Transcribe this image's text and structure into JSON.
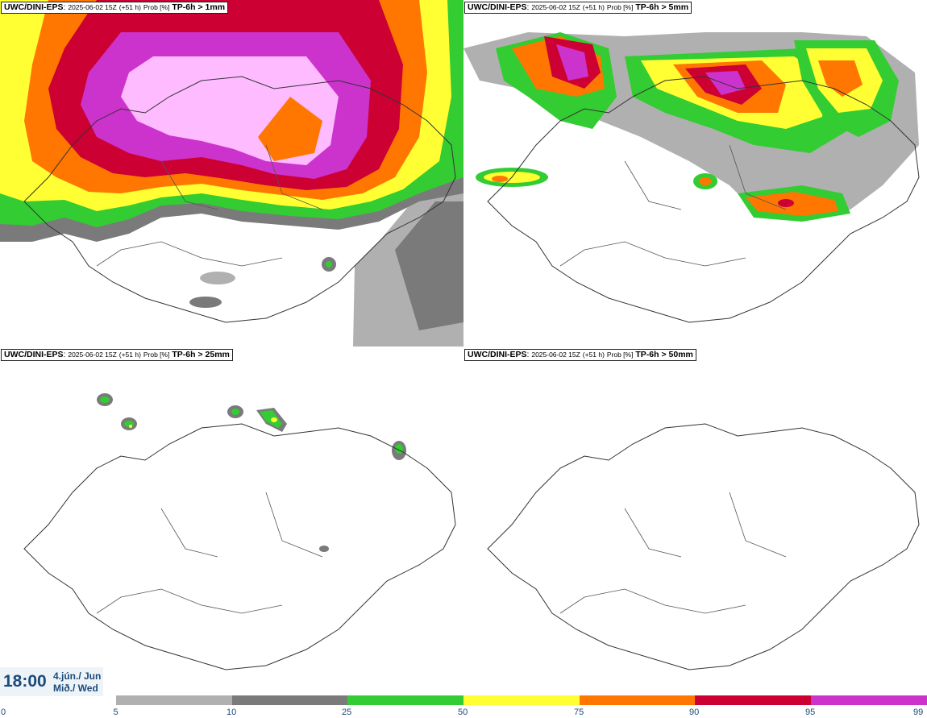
{
  "panels": [
    {
      "model": "UWC/DINI-EPS",
      "run": "2025-06-02 15Z",
      "lead": "(+51 h)",
      "prob": "Prob [%]",
      "threshold": "TP-6h > 1mm"
    },
    {
      "model": "UWC/DINI-EPS",
      "run": "2025-06-02 15Z",
      "lead": "(+51 h)",
      "prob": "Prob [%]",
      "threshold": "TP-6h > 5mm"
    },
    {
      "model": "UWC/DINI-EPS",
      "run": "2025-06-02 15Z",
      "lead": "(+51 h)",
      "prob": "Prob [%]",
      "threshold": "TP-6h > 25mm"
    },
    {
      "model": "UWC/DINI-EPS",
      "run": "2025-06-02 15Z",
      "lead": "(+51 h)",
      "prob": "Prob [%]",
      "threshold": "TP-6h > 50mm"
    }
  ],
  "valid_time": {
    "time": "18:00",
    "date_line1": "4.jún./ Jun",
    "date_line2": "Mið./ Wed"
  },
  "colorbar": {
    "ticks": [
      "0",
      "5",
      "10",
      "25",
      "50",
      "75",
      "90",
      "95",
      "99"
    ],
    "colors": [
      "#b0b0b0",
      "#7a7a7a",
      "#33cc33",
      "#ffff33",
      "#ff7700",
      "#cc0033",
      "#cc33cc",
      "#ffbbff"
    ]
  }
}
